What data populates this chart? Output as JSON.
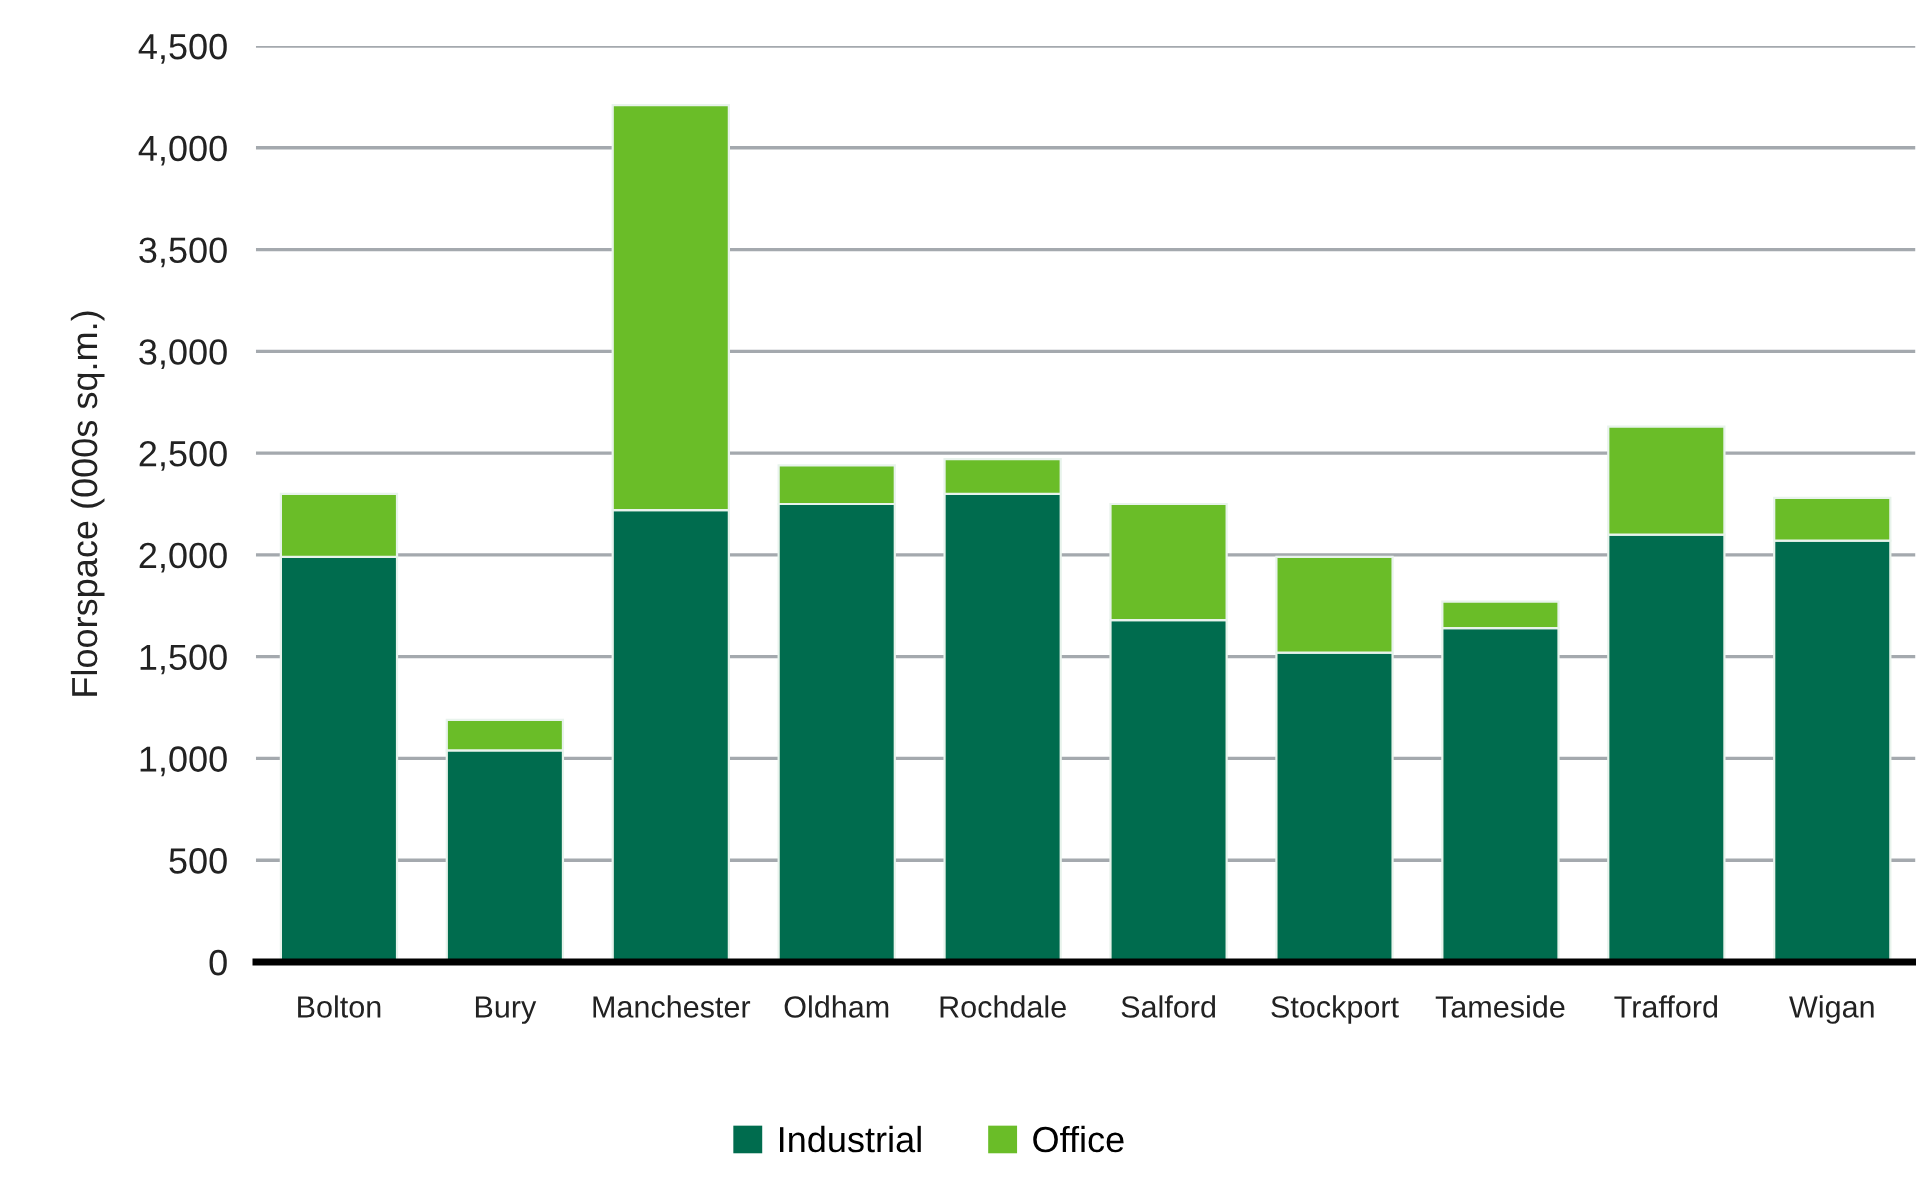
{
  "chart_data": {
    "type": "bar",
    "stacked": true,
    "ylabel": "Floorspace (000s sq.m.)",
    "categories": [
      "Bolton",
      "Bury",
      "Manchester",
      "Oldham",
      "Rochdale",
      "Salford",
      "Stockport",
      "Tameside",
      "Trafford",
      "Wigan"
    ],
    "series": [
      {
        "name": "Industrial",
        "color": "#006c4e",
        "values": [
          1990,
          1040,
          2220,
          2250,
          2300,
          1680,
          1520,
          1640,
          2100,
          2070
        ]
      },
      {
        "name": "Office",
        "color": "#6abd28",
        "values": [
          310,
          150,
          1990,
          190,
          170,
          570,
          470,
          130,
          530,
          210
        ]
      }
    ],
    "ylim": [
      0,
      4500
    ],
    "yticks": [
      0,
      500,
      {
        "value": 1000,
        "label": "1,000"
      },
      {
        "value": 1500,
        "label": "1,500"
      },
      {
        "value": 2000,
        "label": "2,000"
      },
      {
        "value": 2500,
        "label": "2,500"
      },
      {
        "value": 3000,
        "label": "3,000"
      },
      {
        "value": 3500,
        "label": "3,500"
      },
      {
        "value": 4000,
        "label": "4,000"
      },
      {
        "value": 4500,
        "label": "4,500"
      }
    ],
    "grid": "y",
    "legend": "bottom"
  }
}
